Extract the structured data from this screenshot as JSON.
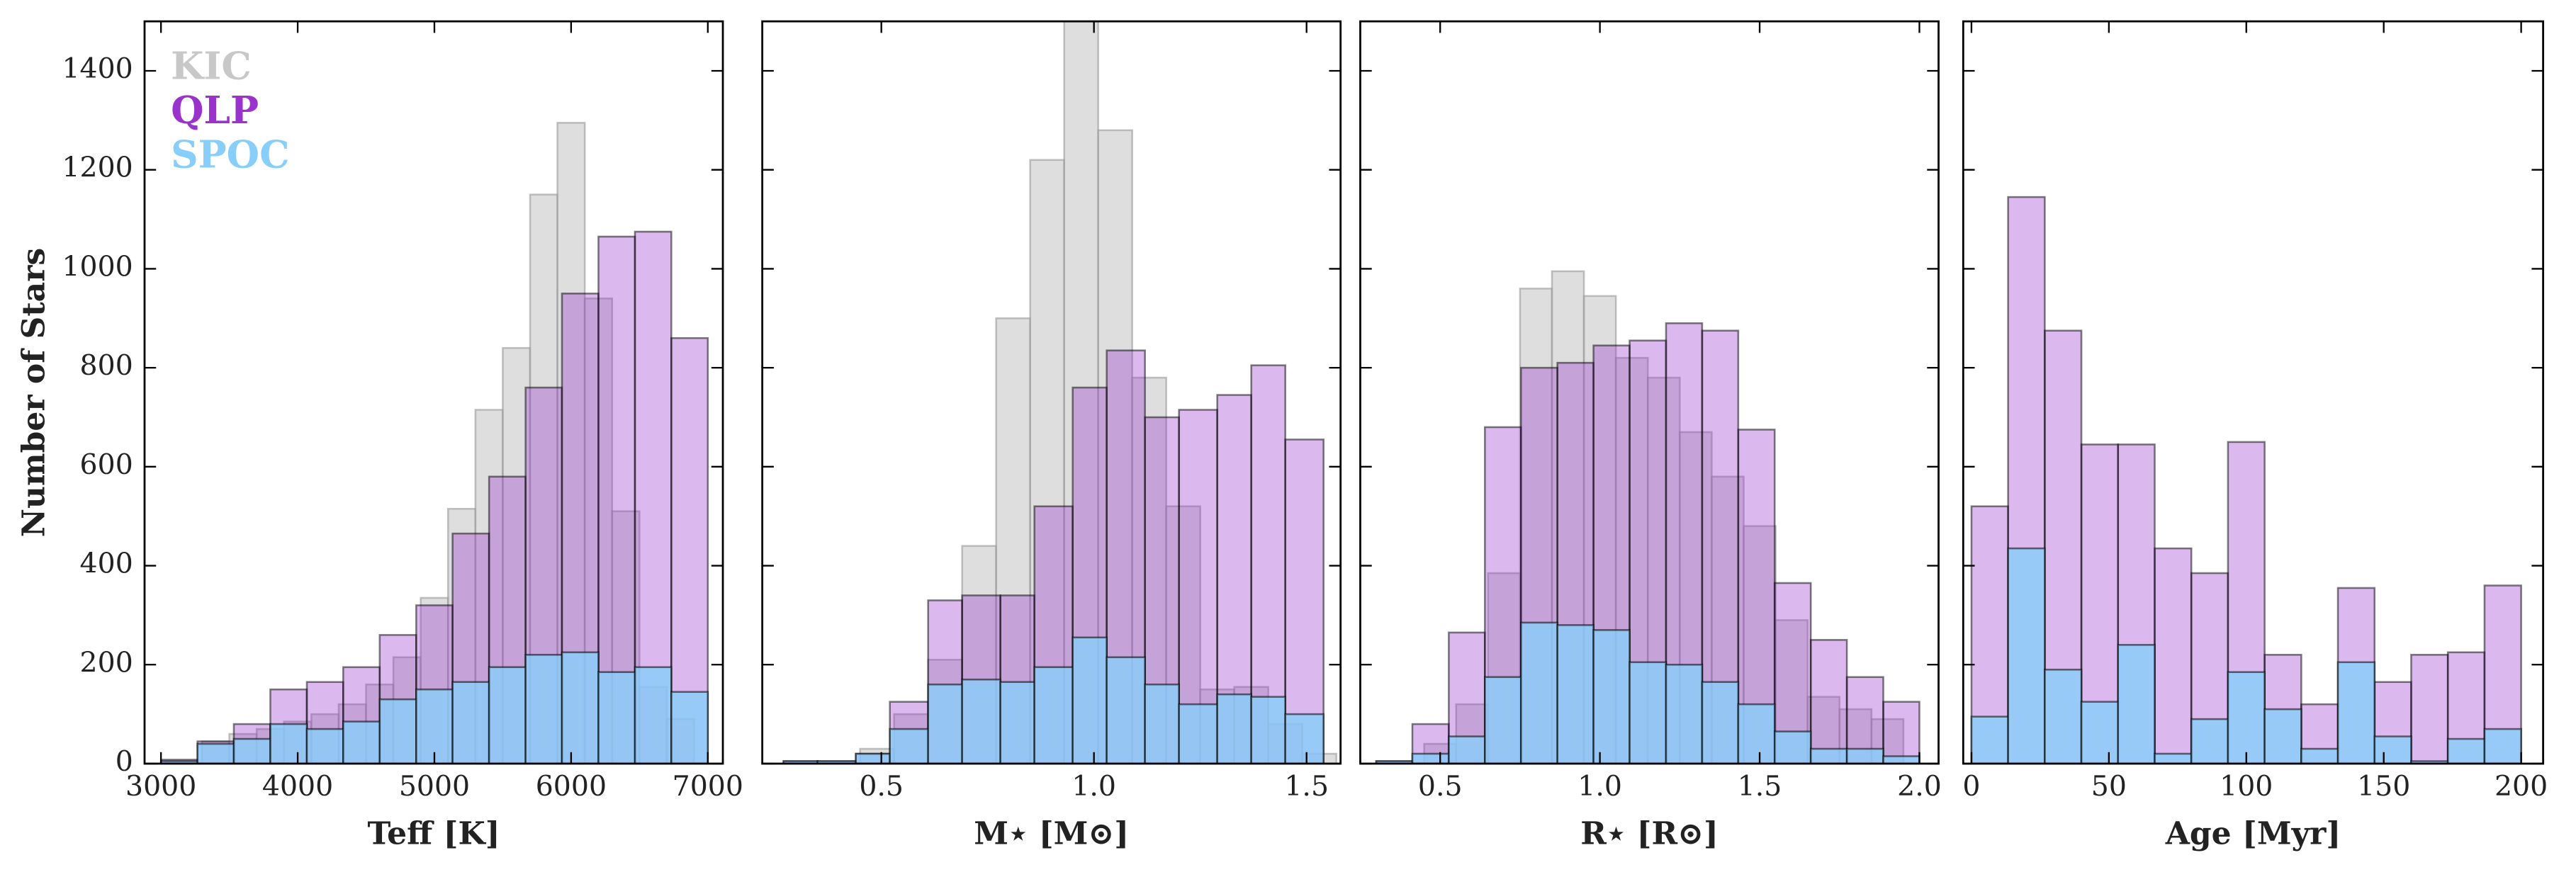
{
  "chart_data": [
    {
      "type": "histogram",
      "xlabel": "Teff [K]",
      "ylabel": "Number of Stars",
      "xlim": [
        2880,
        7110
      ],
      "xticks": [
        3000,
        4000,
        5000,
        6000,
        7000
      ],
      "ylim": [
        0,
        1500
      ],
      "yticks": [
        0,
        200,
        400,
        600,
        800,
        1000,
        1200,
        1400
      ],
      "show_ytick_labels": true,
      "legend": "upper left",
      "series": [
        {
          "name": "KIC",
          "color": "#c8c8c8",
          "bins": [
            3300,
            3500,
            3700,
            3900,
            4100,
            4300,
            4500,
            4700,
            4900,
            5100,
            5300,
            5500,
            5700,
            5900,
            6100,
            6300,
            6500,
            6700,
            6900
          ],
          "values": [
            45,
            60,
            70,
            85,
            100,
            120,
            160,
            215,
            335,
            515,
            715,
            840,
            1150,
            1295,
            940,
            510,
            155,
            90
          ]
        },
        {
          "name": "QLP",
          "color": "#9933cc",
          "bins": [
            3000,
            3267,
            3533,
            3800,
            4067,
            4333,
            4600,
            4867,
            5133,
            5400,
            5667,
            5933,
            6200,
            6467,
            6733,
            7000
          ],
          "values": [
            8,
            45,
            80,
            150,
            165,
            195,
            260,
            320,
            465,
            580,
            760,
            950,
            1065,
            1075,
            860
          ]
        },
        {
          "name": "SPOC",
          "color": "#87cefa",
          "bins": [
            3000,
            3267,
            3533,
            3800,
            4067,
            4333,
            4600,
            4867,
            5133,
            5400,
            5667,
            5933,
            6200,
            6467,
            6733,
            7000
          ],
          "values": [
            5,
            40,
            50,
            80,
            70,
            85,
            130,
            150,
            165,
            195,
            220,
            225,
            185,
            195,
            145
          ]
        }
      ]
    },
    {
      "type": "histogram",
      "xlabel": "M⋆ [M⊙]",
      "xlim": [
        0.22,
        1.58
      ],
      "xticks": [
        0.5,
        {
          "value": 1,
          "label": "1.0"
        },
        1.5
      ],
      "ylim": [
        0,
        1500
      ],
      "yticks": [
        0,
        200,
        400,
        600,
        800,
        1000,
        1200,
        1400
      ],
      "show_ytick_labels": false,
      "series": [
        {
          "color": "#c8c8c8",
          "bins": [
            0.45,
            0.53,
            0.61,
            0.69,
            0.77,
            0.85,
            0.93,
            1.01,
            1.09,
            1.17,
            1.25,
            1.33,
            1.41,
            1.49,
            1.57
          ],
          "values": [
            30,
            100,
            210,
            440,
            900,
            1220,
            1500,
            1280,
            780,
            520,
            150,
            155,
            80,
            20
          ]
        },
        {
          "color": "#9933cc",
          "bins": [
            0.27,
            0.35,
            0.44,
            0.52,
            0.61,
            0.69,
            0.78,
            0.86,
            0.95,
            1.03,
            1.12,
            1.2,
            1.29,
            1.37,
            1.45,
            1.54
          ],
          "values": [
            5,
            5,
            20,
            125,
            330,
            340,
            340,
            520,
            760,
            835,
            700,
            715,
            745,
            805,
            655
          ]
        },
        {
          "color": "#87cefa",
          "bins": [
            0.27,
            0.35,
            0.44,
            0.52,
            0.61,
            0.69,
            0.78,
            0.86,
            0.95,
            1.03,
            1.12,
            1.2,
            1.29,
            1.37,
            1.45,
            1.54
          ],
          "values": [
            5,
            5,
            20,
            70,
            160,
            170,
            165,
            195,
            255,
            215,
            160,
            120,
            140,
            135,
            100
          ]
        }
      ]
    },
    {
      "type": "histogram",
      "xlabel": "R⋆ [R⊙]",
      "xlim": [
        0.25,
        2.06
      ],
      "xticks": [
        0.5,
        {
          "value": 1,
          "label": "1.0"
        },
        1.5,
        {
          "value": 2,
          "label": "2.0"
        }
      ],
      "ylim": [
        0,
        1500
      ],
      "yticks": [
        0,
        200,
        400,
        600,
        800,
        1000,
        1200,
        1400
      ],
      "show_ytick_labels": false,
      "series": [
        {
          "color": "#c8c8c8",
          "bins": [
            0.45,
            0.55,
            0.65,
            0.75,
            0.85,
            0.95,
            1.05,
            1.15,
            1.25,
            1.35,
            1.45,
            1.55,
            1.65,
            1.75,
            1.85,
            1.95
          ],
          "values": [
            40,
            120,
            385,
            960,
            995,
            945,
            820,
            780,
            670,
            580,
            480,
            290,
            135,
            110,
            90
          ]
        },
        {
          "color": "#9933cc",
          "bins": [
            0.3,
            0.413,
            0.527,
            0.64,
            0.753,
            0.867,
            0.98,
            1.093,
            1.207,
            1.32,
            1.433,
            1.547,
            1.66,
            1.773,
            1.887,
            2.0
          ],
          "values": [
            5,
            80,
            265,
            680,
            800,
            810,
            845,
            855,
            890,
            875,
            675,
            365,
            250,
            175,
            125
          ]
        },
        {
          "color": "#87cefa",
          "bins": [
            0.3,
            0.413,
            0.527,
            0.64,
            0.753,
            0.867,
            0.98,
            1.093,
            1.207,
            1.32,
            1.433,
            1.547,
            1.66,
            1.773,
            1.887,
            2.0
          ],
          "values": [
            5,
            20,
            55,
            175,
            285,
            280,
            270,
            205,
            200,
            165,
            120,
            65,
            30,
            30,
            15
          ]
        }
      ]
    },
    {
      "type": "histogram",
      "xlabel": "Age [Myr]",
      "xlim": [
        -3,
        208
      ],
      "xticks": [
        0,
        50,
        100,
        150,
        200
      ],
      "ylim": [
        0,
        1500
      ],
      "yticks": [
        0,
        200,
        400,
        600,
        800,
        1000,
        1200,
        1400
      ],
      "show_ytick_labels": false,
      "series": [
        {
          "color": "#9933cc",
          "bins": [
            0,
            13.33,
            26.67,
            40,
            53.33,
            66.67,
            80,
            93.33,
            106.67,
            120,
            133.33,
            146.67,
            160,
            173.33,
            186.67,
            200
          ],
          "values": [
            520,
            1145,
            875,
            645,
            645,
            435,
            385,
            650,
            220,
            120,
            355,
            165,
            220,
            225,
            360
          ]
        },
        {
          "color": "#87cefa",
          "bins": [
            0,
            13.33,
            26.67,
            40,
            53.33,
            66.67,
            80,
            93.33,
            106.67,
            120,
            133.33,
            146.67,
            160,
            173.33,
            186.67,
            200
          ],
          "values": [
            95,
            435,
            190,
            125,
            240,
            20,
            90,
            185,
            110,
            30,
            205,
            55,
            5,
            50,
            70
          ]
        }
      ]
    }
  ]
}
